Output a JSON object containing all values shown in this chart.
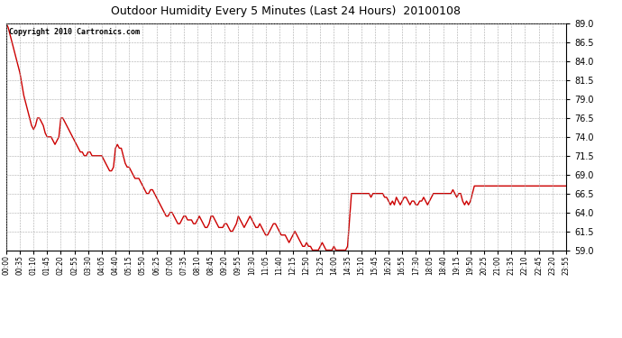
{
  "title": "Outdoor Humidity Every 5 Minutes (Last 24 Hours)  20100108",
  "copyright_text": "Copyright 2010 Cartronics.com",
  "line_color": "#cc0000",
  "bg_color": "#ffffff",
  "plot_bg_color": "#ffffff",
  "grid_color": "#aaaaaa",
  "ylim": [
    59.0,
    89.0
  ],
  "yticks": [
    59.0,
    61.5,
    64.0,
    66.5,
    69.0,
    71.5,
    74.0,
    76.5,
    79.0,
    81.5,
    84.0,
    86.5,
    89.0
  ],
  "xtick_labels": [
    "00:00",
    "00:35",
    "01:10",
    "01:45",
    "02:20",
    "02:55",
    "03:30",
    "04:05",
    "04:40",
    "05:15",
    "05:50",
    "06:25",
    "07:00",
    "07:35",
    "08:10",
    "08:45",
    "09:20",
    "09:55",
    "10:30",
    "11:05",
    "11:40",
    "12:15",
    "12:50",
    "13:25",
    "14:00",
    "14:35",
    "15:10",
    "15:45",
    "16:20",
    "16:55",
    "17:30",
    "18:05",
    "18:40",
    "19:15",
    "19:50",
    "20:25",
    "21:00",
    "21:35",
    "22:10",
    "22:45",
    "23:20",
    "23:55"
  ],
  "humidity_values": [
    89.0,
    88.5,
    87.5,
    86.5,
    85.5,
    84.5,
    83.5,
    82.5,
    81.0,
    79.5,
    78.5,
    77.5,
    76.5,
    75.5,
    75.0,
    75.5,
    76.5,
    76.5,
    76.0,
    75.5,
    74.5,
    74.0,
    74.0,
    74.0,
    73.5,
    73.0,
    73.5,
    74.0,
    76.5,
    76.5,
    76.0,
    75.5,
    75.0,
    74.5,
    74.0,
    73.5,
    73.0,
    72.5,
    72.0,
    72.0,
    71.5,
    71.5,
    72.0,
    72.0,
    71.5,
    71.5,
    71.5,
    71.5,
    71.5,
    71.5,
    71.0,
    70.5,
    70.0,
    69.5,
    69.5,
    70.0,
    72.5,
    73.0,
    72.5,
    72.5,
    71.5,
    70.5,
    70.0,
    70.0,
    69.5,
    69.0,
    68.5,
    68.5,
    68.5,
    68.0,
    67.5,
    67.0,
    66.5,
    66.5,
    67.0,
    67.0,
    66.5,
    66.0,
    65.5,
    65.0,
    64.5,
    64.0,
    63.5,
    63.5,
    64.0,
    64.0,
    63.5,
    63.0,
    62.5,
    62.5,
    63.0,
    63.5,
    63.5,
    63.0,
    63.0,
    63.0,
    62.5,
    62.5,
    63.0,
    63.5,
    63.0,
    62.5,
    62.0,
    62.0,
    62.5,
    63.5,
    63.5,
    63.0,
    62.5,
    62.0,
    62.0,
    62.0,
    62.5,
    62.5,
    62.0,
    61.5,
    61.5,
    62.0,
    62.5,
    63.5,
    63.0,
    62.5,
    62.0,
    62.5,
    63.0,
    63.5,
    63.0,
    62.5,
    62.0,
    62.0,
    62.5,
    62.0,
    61.5,
    61.0,
    61.0,
    61.5,
    62.0,
    62.5,
    62.5,
    62.0,
    61.5,
    61.0,
    61.0,
    61.0,
    60.5,
    60.0,
    60.5,
    61.0,
    61.5,
    61.0,
    60.5,
    60.0,
    59.5,
    59.5,
    60.0,
    59.5,
    59.5,
    59.0,
    59.0,
    59.0,
    59.0,
    59.5,
    60.0,
    59.5,
    59.0,
    59.0,
    59.0,
    59.0,
    59.5,
    59.0,
    59.0,
    59.0,
    59.0,
    59.0,
    59.0,
    59.5,
    63.0,
    66.5,
    66.5,
    66.5,
    66.5,
    66.5,
    66.5,
    66.5,
    66.5,
    66.5,
    66.5,
    66.0,
    66.5,
    66.5,
    66.5,
    66.5,
    66.5,
    66.5,
    66.0,
    66.0,
    65.5,
    65.0,
    65.5,
    65.0,
    66.0,
    65.5,
    65.0,
    65.5,
    66.0,
    66.0,
    65.5,
    65.0,
    65.5,
    65.5,
    65.0,
    65.0,
    65.5,
    65.5,
    66.0,
    65.5,
    65.0,
    65.5,
    66.0,
    66.5,
    66.5,
    66.5,
    66.5,
    66.5,
    66.5,
    66.5,
    66.5,
    66.5,
    66.5,
    67.0,
    66.5,
    66.0,
    66.5,
    66.5,
    65.5,
    65.0,
    65.5,
    65.0,
    65.5,
    66.5,
    67.5,
    67.5,
    67.5,
    67.5,
    67.5,
    67.5,
    67.5,
    67.5,
    67.5,
    67.5,
    67.5,
    67.5,
    67.5,
    67.5,
    67.5,
    67.5,
    67.5,
    67.5,
    67.5,
    67.5,
    67.5,
    67.5,
    67.5,
    67.5,
    67.5,
    67.5,
    67.5,
    67.5,
    67.5,
    67.5,
    67.5,
    67.5,
    67.5,
    67.5,
    67.5,
    67.5,
    67.5,
    67.5,
    67.5,
    67.5,
    67.5,
    67.5,
    67.5,
    67.5,
    67.5,
    67.5,
    67.5,
    67.5
  ]
}
